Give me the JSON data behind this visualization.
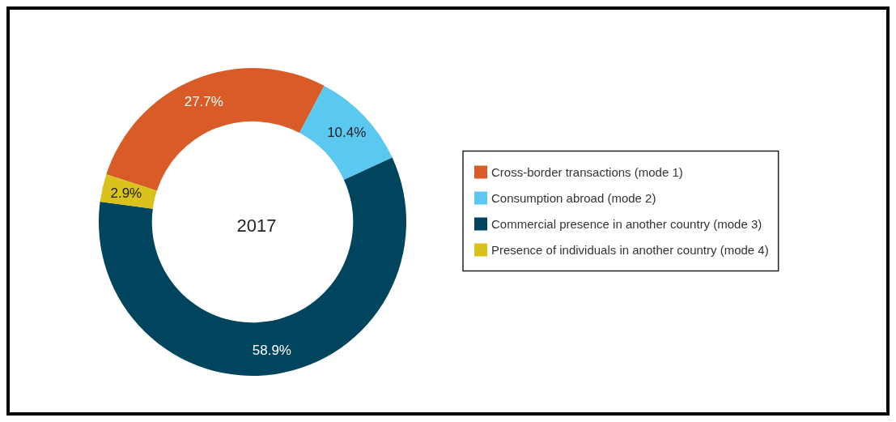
{
  "chart_data": {
    "type": "donut",
    "title": "2017",
    "categories": [
      "Cross-border transactions (mode 1)",
      "Consumption abroad (mode 2)",
      "Commercial presence in another country (mode 3)",
      "Presence of individuals in another country (mode 4)"
    ],
    "values": [
      27.7,
      10.4,
      58.9,
      2.9
    ],
    "colors": [
      "#d95b27",
      "#5bc8f0",
      "#00445e",
      "#d9c21c"
    ],
    "value_labels": [
      "27.7%",
      "10.4%",
      "58.9%",
      "2.9%"
    ],
    "legend": "right"
  }
}
